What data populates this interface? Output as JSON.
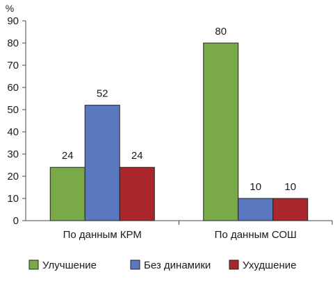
{
  "chart_data": {
    "type": "bar",
    "title": "",
    "xlabel": "",
    "ylabel": "%",
    "ylim": [
      0,
      90
    ],
    "yticks": [
      0,
      10,
      20,
      30,
      40,
      50,
      60,
      70,
      80,
      90
    ],
    "grid": false,
    "legend_position": "bottom",
    "categories": [
      "По данным КРМ",
      "По данным СОШ"
    ],
    "series": [
      {
        "name": "Улучшение",
        "color": "#7aaa48",
        "values": [
          24,
          80
        ]
      },
      {
        "name": "Без динамики",
        "color": "#5a78c0",
        "values": [
          52,
          10
        ]
      },
      {
        "name": "Ухудшение",
        "color": "#a8262c",
        "values": [
          24,
          10
        ]
      }
    ]
  }
}
